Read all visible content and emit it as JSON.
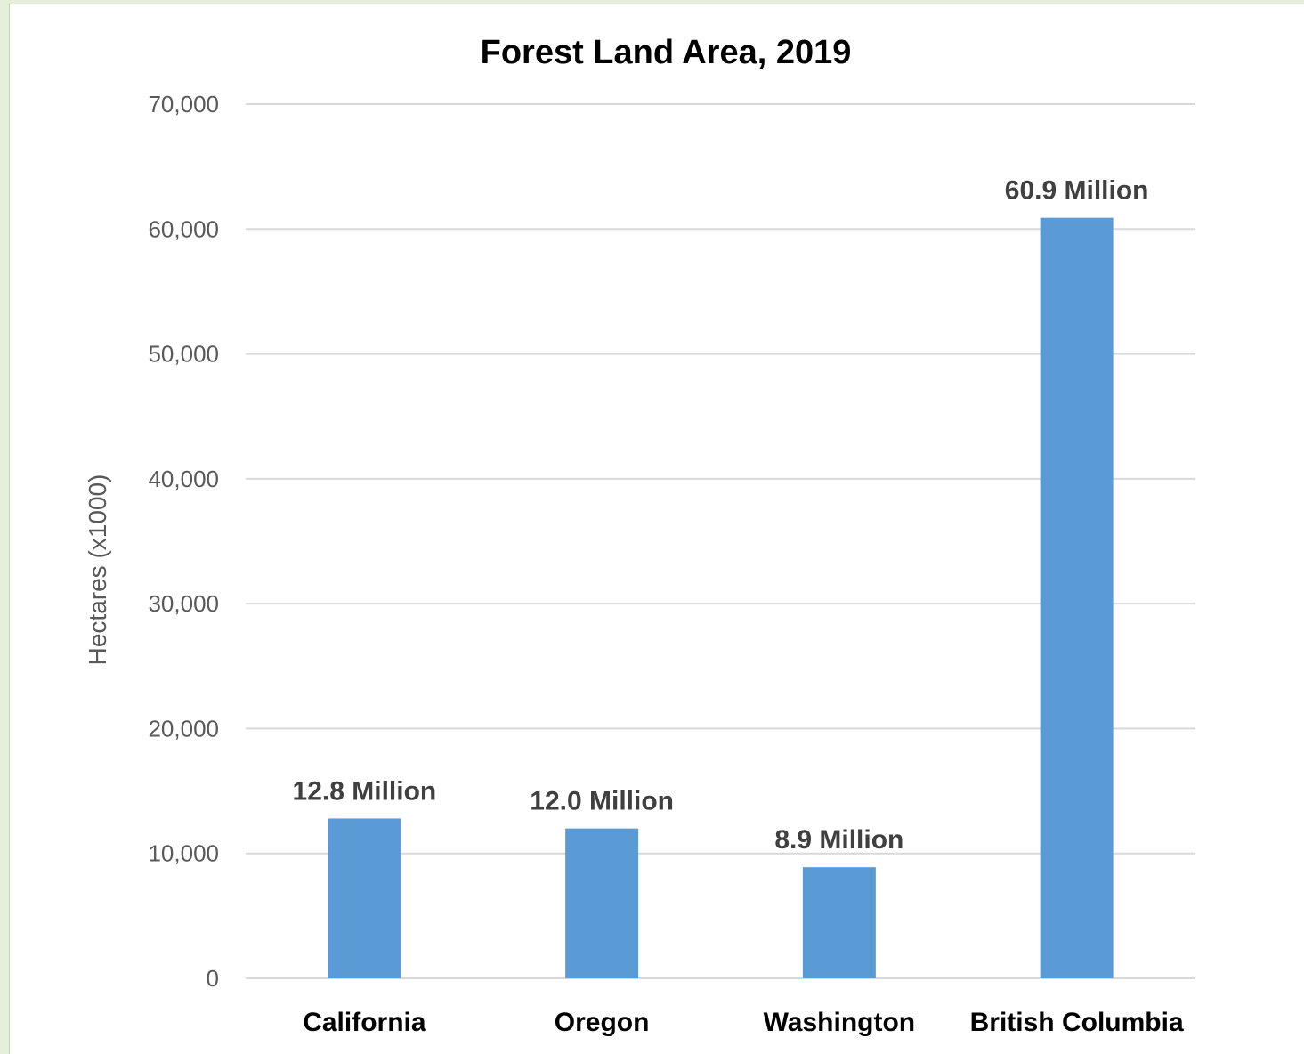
{
  "chart_data": {
    "type": "bar",
    "title": "Forest Land Area, 2019",
    "xlabel": "",
    "ylabel": "Hectares (x1000)",
    "ylim": [
      0,
      70000
    ],
    "yticks": [
      0,
      10000,
      20000,
      30000,
      40000,
      50000,
      60000,
      70000
    ],
    "ytick_labels": [
      "0",
      "10,000",
      "20,000",
      "30,000",
      "40,000",
      "50,000",
      "60,000",
      "70,000"
    ],
    "categories": [
      "California",
      "Oregon",
      "Washington",
      "British Columbia"
    ],
    "values": [
      12800,
      12000,
      8900,
      60900
    ],
    "data_labels": [
      "12.8 Million",
      "12.0 Million",
      "8.9 Million",
      "60.9 Million"
    ],
    "grid": true,
    "legend": "none",
    "colors": {
      "bar": "#5b9bd5",
      "grid": "#d9d9d9",
      "axis": "#d9d9d9"
    }
  }
}
